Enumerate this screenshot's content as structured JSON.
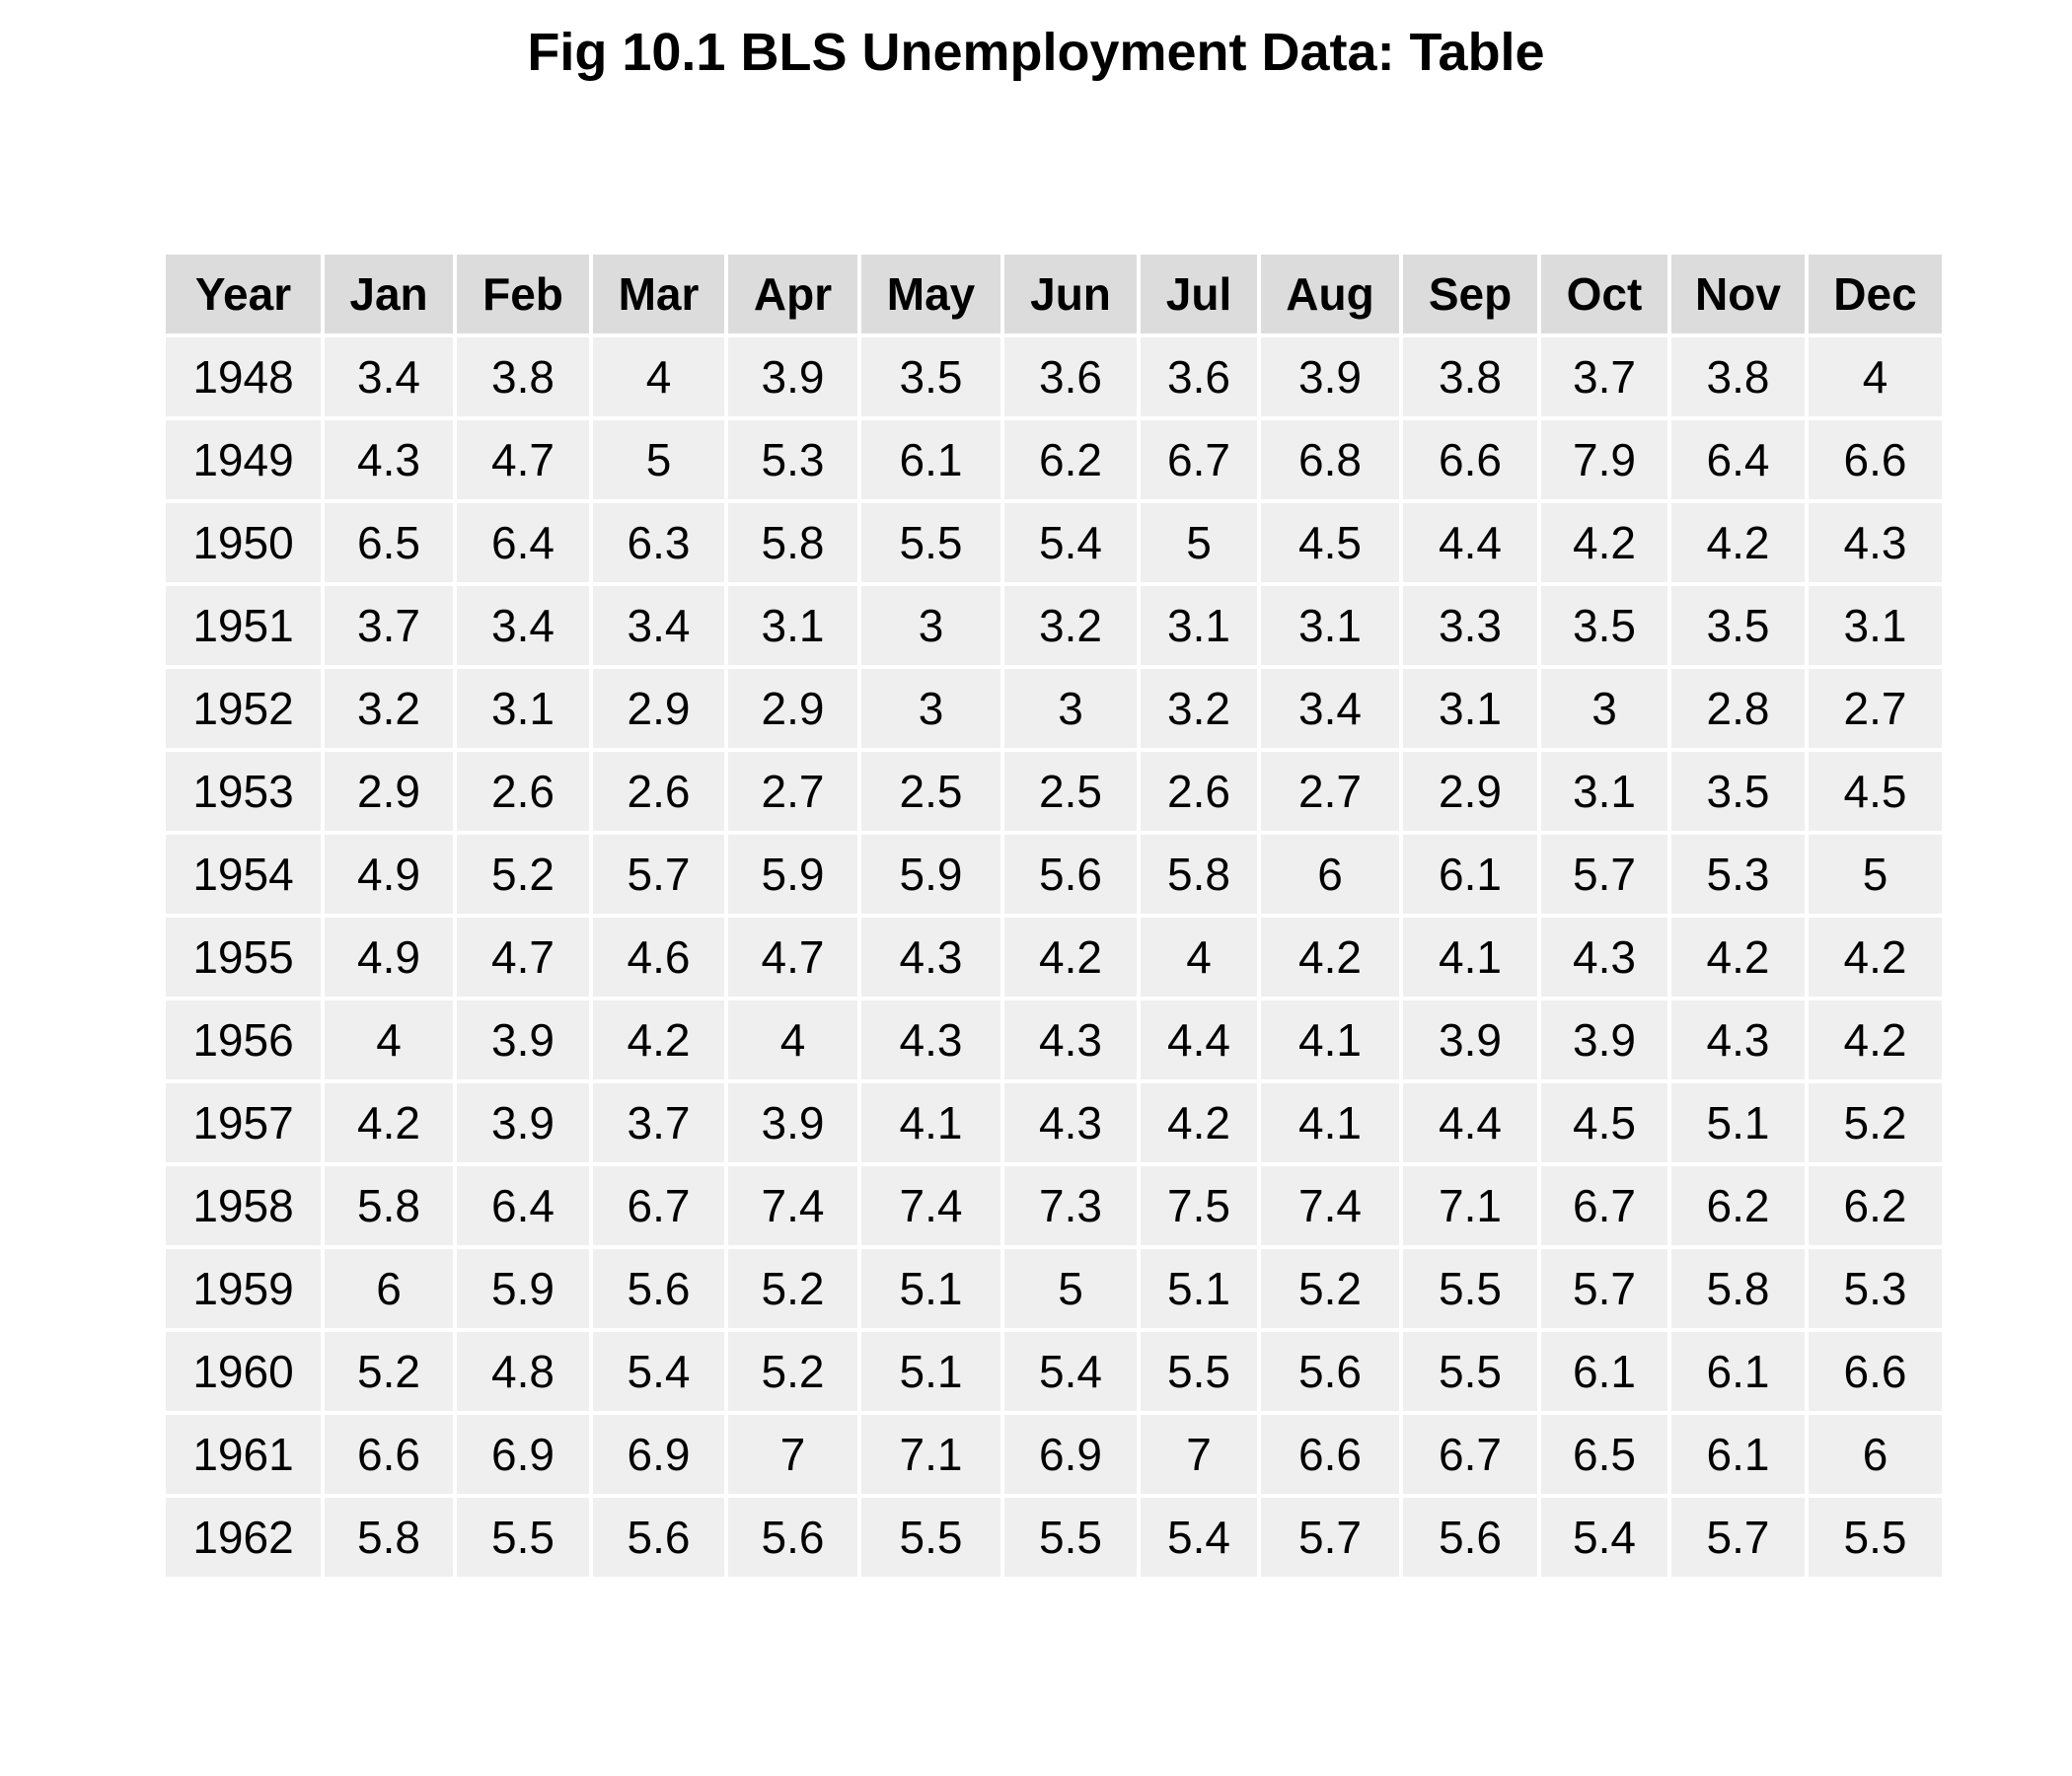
{
  "title": "Fig 10.1 BLS Unemployment Data: Table",
  "chart_data": {
    "type": "table",
    "title": "Fig 10.1 BLS Unemployment Data: Table",
    "columns": [
      "Year",
      "Jan",
      "Feb",
      "Mar",
      "Apr",
      "May",
      "Jun",
      "Jul",
      "Aug",
      "Sep",
      "Oct",
      "Nov",
      "Dec"
    ],
    "rows": [
      [
        "1948",
        "3.4",
        "3.8",
        "4",
        "3.9",
        "3.5",
        "3.6",
        "3.6",
        "3.9",
        "3.8",
        "3.7",
        "3.8",
        "4"
      ],
      [
        "1949",
        "4.3",
        "4.7",
        "5",
        "5.3",
        "6.1",
        "6.2",
        "6.7",
        "6.8",
        "6.6",
        "7.9",
        "6.4",
        "6.6"
      ],
      [
        "1950",
        "6.5",
        "6.4",
        "6.3",
        "5.8",
        "5.5",
        "5.4",
        "5",
        "4.5",
        "4.4",
        "4.2",
        "4.2",
        "4.3"
      ],
      [
        "1951",
        "3.7",
        "3.4",
        "3.4",
        "3.1",
        "3",
        "3.2",
        "3.1",
        "3.1",
        "3.3",
        "3.5",
        "3.5",
        "3.1"
      ],
      [
        "1952",
        "3.2",
        "3.1",
        "2.9",
        "2.9",
        "3",
        "3",
        "3.2",
        "3.4",
        "3.1",
        "3",
        "2.8",
        "2.7"
      ],
      [
        "1953",
        "2.9",
        "2.6",
        "2.6",
        "2.7",
        "2.5",
        "2.5",
        "2.6",
        "2.7",
        "2.9",
        "3.1",
        "3.5",
        "4.5"
      ],
      [
        "1954",
        "4.9",
        "5.2",
        "5.7",
        "5.9",
        "5.9",
        "5.6",
        "5.8",
        "6",
        "6.1",
        "5.7",
        "5.3",
        "5"
      ],
      [
        "1955",
        "4.9",
        "4.7",
        "4.6",
        "4.7",
        "4.3",
        "4.2",
        "4",
        "4.2",
        "4.1",
        "4.3",
        "4.2",
        "4.2"
      ],
      [
        "1956",
        "4",
        "3.9",
        "4.2",
        "4",
        "4.3",
        "4.3",
        "4.4",
        "4.1",
        "3.9",
        "3.9",
        "4.3",
        "4.2"
      ],
      [
        "1957",
        "4.2",
        "3.9",
        "3.7",
        "3.9",
        "4.1",
        "4.3",
        "4.2",
        "4.1",
        "4.4",
        "4.5",
        "5.1",
        "5.2"
      ],
      [
        "1958",
        "5.8",
        "6.4",
        "6.7",
        "7.4",
        "7.4",
        "7.3",
        "7.5",
        "7.4",
        "7.1",
        "6.7",
        "6.2",
        "6.2"
      ],
      [
        "1959",
        "6",
        "5.9",
        "5.6",
        "5.2",
        "5.1",
        "5",
        "5.1",
        "5.2",
        "5.5",
        "5.7",
        "5.8",
        "5.3"
      ],
      [
        "1960",
        "5.2",
        "4.8",
        "5.4",
        "5.2",
        "5.1",
        "5.4",
        "5.5",
        "5.6",
        "5.5",
        "6.1",
        "6.1",
        "6.6"
      ],
      [
        "1961",
        "6.6",
        "6.9",
        "6.9",
        "7",
        "7.1",
        "6.9",
        "7",
        "6.6",
        "6.7",
        "6.5",
        "6.1",
        "6"
      ],
      [
        "1962",
        "5.8",
        "5.5",
        "5.6",
        "5.6",
        "5.5",
        "5.5",
        "5.4",
        "5.7",
        "5.6",
        "5.4",
        "5.7",
        "5.5"
      ]
    ],
    "colors": {
      "header_fill": "#dcdcdc",
      "cell_fill": "#efefef",
      "grid": "#ffffff"
    }
  }
}
